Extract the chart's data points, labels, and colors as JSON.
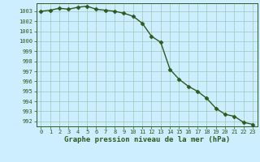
{
  "x": [
    0,
    1,
    2,
    3,
    4,
    5,
    6,
    7,
    8,
    9,
    10,
    11,
    12,
    13,
    14,
    15,
    16,
    17,
    18,
    19,
    20,
    21,
    22,
    23
  ],
  "y": [
    1003.0,
    1003.1,
    1003.3,
    1003.2,
    1003.4,
    1003.5,
    1003.2,
    1003.1,
    1003.0,
    1002.8,
    1002.5,
    1001.8,
    1000.5,
    999.9,
    997.2,
    996.2,
    995.5,
    995.0,
    994.3,
    993.3,
    992.7,
    992.5,
    991.9,
    991.7
  ],
  "line_color": "#2d5a1b",
  "marker": "D",
  "marker_size": 2.5,
  "bg_color": "#cceeff",
  "grid_color": "#99ccbb",
  "xlabel": "Graphe pression niveau de la mer (hPa)",
  "xlabel_fontsize": 6.5,
  "ylim": [
    991.5,
    1003.8
  ],
  "yticks": [
    992,
    993,
    994,
    995,
    996,
    997,
    998,
    999,
    1000,
    1001,
    1002,
    1003
  ],
  "xticks": [
    0,
    1,
    2,
    3,
    4,
    5,
    6,
    7,
    8,
    9,
    10,
    11,
    12,
    13,
    14,
    15,
    16,
    17,
    18,
    19,
    20,
    21,
    22,
    23
  ],
  "tick_fontsize": 5.0,
  "line_width": 1.0
}
